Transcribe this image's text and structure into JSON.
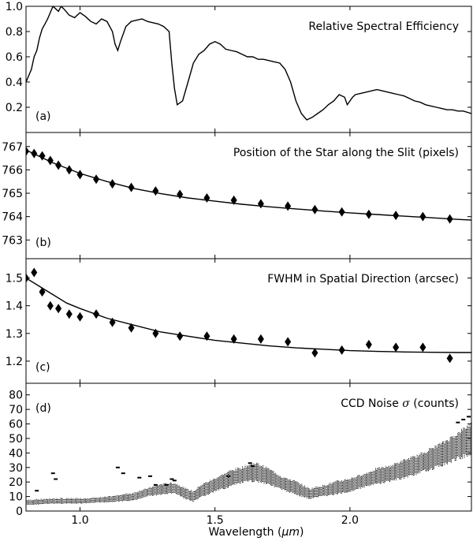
{
  "figure": {
    "xlabel_main": "Wavelength (",
    "xlabel_unit": "μm",
    "xlabel_close": ")"
  },
  "chart_data": [
    {
      "type": "line",
      "panel_letter": "(a)",
      "title": "Relative Spectral Efficiency",
      "xlim": [
        0.8,
        2.45
      ],
      "ylim": [
        0.0,
        1.0
      ],
      "yticks": [
        0.2,
        0.4,
        0.6,
        0.8,
        1.0
      ],
      "ytick_labels": [
        "0.2",
        "0.4",
        "0.6",
        "0.8",
        "1.0"
      ],
      "series": [
        {
          "name": "efficiency",
          "x": [
            0.8,
            0.81,
            0.82,
            0.83,
            0.84,
            0.85,
            0.86,
            0.87,
            0.88,
            0.89,
            0.9,
            0.91,
            0.92,
            0.93,
            0.94,
            0.96,
            0.98,
            1.0,
            1.02,
            1.04,
            1.06,
            1.08,
            1.1,
            1.12,
            1.13,
            1.14,
            1.15,
            1.17,
            1.19,
            1.21,
            1.23,
            1.25,
            1.27,
            1.29,
            1.31,
            1.33,
            1.34,
            1.35,
            1.36,
            1.38,
            1.4,
            1.42,
            1.44,
            1.46,
            1.48,
            1.5,
            1.52,
            1.54,
            1.56,
            1.58,
            1.6,
            1.62,
            1.64,
            1.66,
            1.68,
            1.7,
            1.72,
            1.74,
            1.76,
            1.78,
            1.8,
            1.82,
            1.84,
            1.86,
            1.88,
            1.9,
            1.92,
            1.94,
            1.96,
            1.98,
            1.99,
            2.0,
            2.01,
            2.02,
            2.04,
            2.06,
            2.08,
            2.1,
            2.12,
            2.14,
            2.16,
            2.18,
            2.2,
            2.22,
            2.24,
            2.26,
            2.28,
            2.3,
            2.32,
            2.34,
            2.36,
            2.38,
            2.4,
            2.42,
            2.45
          ],
          "y": [
            0.4,
            0.45,
            0.5,
            0.6,
            0.65,
            0.75,
            0.82,
            0.86,
            0.9,
            0.95,
            1.0,
            0.98,
            0.96,
            1.0,
            0.98,
            0.93,
            0.91,
            0.95,
            0.92,
            0.88,
            0.86,
            0.9,
            0.88,
            0.8,
            0.7,
            0.65,
            0.72,
            0.84,
            0.88,
            0.89,
            0.9,
            0.88,
            0.87,
            0.86,
            0.84,
            0.8,
            0.55,
            0.35,
            0.22,
            0.25,
            0.4,
            0.55,
            0.62,
            0.65,
            0.7,
            0.72,
            0.7,
            0.66,
            0.65,
            0.64,
            0.62,
            0.6,
            0.6,
            0.58,
            0.58,
            0.57,
            0.56,
            0.55,
            0.5,
            0.4,
            0.25,
            0.15,
            0.1,
            0.12,
            0.15,
            0.18,
            0.22,
            0.25,
            0.3,
            0.28,
            0.22,
            0.25,
            0.28,
            0.3,
            0.31,
            0.32,
            0.33,
            0.34,
            0.33,
            0.32,
            0.31,
            0.3,
            0.29,
            0.27,
            0.25,
            0.24,
            0.22,
            0.21,
            0.2,
            0.19,
            0.18,
            0.18,
            0.17,
            0.17,
            0.15
          ]
        }
      ]
    },
    {
      "type": "scatter",
      "panel_letter": "(b)",
      "title": "Position of the Star along the Slit (pixels)",
      "xlim": [
        0.8,
        2.45
      ],
      "ylim": [
        762.2,
        767.6
      ],
      "yticks": [
        763,
        764,
        765,
        766,
        767
      ],
      "ytick_labels": [
        "763",
        "764",
        "765",
        "766",
        "767"
      ],
      "points": {
        "x": [
          0.8,
          0.83,
          0.86,
          0.89,
          0.92,
          0.96,
          1.0,
          1.06,
          1.12,
          1.19,
          1.28,
          1.37,
          1.47,
          1.57,
          1.67,
          1.77,
          1.87,
          1.97,
          2.07,
          2.17,
          2.27,
          2.37
        ],
        "y": [
          766.8,
          766.7,
          766.6,
          766.4,
          766.2,
          766.0,
          765.8,
          765.6,
          765.4,
          765.25,
          765.1,
          764.95,
          764.8,
          764.7,
          764.55,
          764.45,
          764.3,
          764.2,
          764.1,
          764.05,
          764.0,
          763.9
        ]
      },
      "fit_curve": {
        "x": [
          0.8,
          0.9,
          1.0,
          1.1,
          1.2,
          1.3,
          1.4,
          1.5,
          1.6,
          1.7,
          1.8,
          1.9,
          2.0,
          2.1,
          2.2,
          2.3,
          2.4,
          2.45
        ],
        "y": [
          766.85,
          766.3,
          765.85,
          765.5,
          765.2,
          764.98,
          764.8,
          764.66,
          764.53,
          764.42,
          764.33,
          764.24,
          764.16,
          764.09,
          764.02,
          763.95,
          763.88,
          763.85
        ]
      }
    },
    {
      "type": "scatter",
      "panel_letter": "(c)",
      "title": "FWHM in Spatial Direction (arcsec)",
      "xlim": [
        0.8,
        2.45
      ],
      "ylim": [
        1.12,
        1.57
      ],
      "yticks": [
        1.2,
        1.3,
        1.4,
        1.5
      ],
      "ytick_labels": [
        "1.2",
        "1.3",
        "1.4",
        "1.5"
      ],
      "points": {
        "x": [
          0.8,
          0.83,
          0.86,
          0.89,
          0.92,
          0.96,
          1.0,
          1.06,
          1.12,
          1.19,
          1.28,
          1.37,
          1.47,
          1.57,
          1.67,
          1.77,
          1.87,
          1.97,
          2.07,
          2.17,
          2.27,
          2.37
        ],
        "y": [
          1.5,
          1.52,
          1.45,
          1.4,
          1.39,
          1.37,
          1.36,
          1.37,
          1.34,
          1.32,
          1.3,
          1.29,
          1.29,
          1.28,
          1.28,
          1.27,
          1.23,
          1.24,
          1.26,
          1.25,
          1.25,
          1.21
        ]
      },
      "fit_curve": {
        "x": [
          0.8,
          0.85,
          0.9,
          0.95,
          1.0,
          1.1,
          1.2,
          1.3,
          1.4,
          1.5,
          1.6,
          1.7,
          1.8,
          1.9,
          2.0,
          2.1,
          2.2,
          2.3,
          2.4,
          2.45
        ],
        "y": [
          1.5,
          1.47,
          1.44,
          1.41,
          1.39,
          1.355,
          1.33,
          1.305,
          1.29,
          1.275,
          1.265,
          1.255,
          1.248,
          1.243,
          1.238,
          1.235,
          1.233,
          1.232,
          1.231,
          1.231
        ]
      }
    },
    {
      "type": "scatter",
      "panel_letter": "(d)",
      "title_main": "CCD Noise ",
      "title_sigma": "σ",
      "title_rest": " (counts)",
      "xlim": [
        0.8,
        2.45
      ],
      "ylim": [
        0,
        88
      ],
      "yticks": [
        0,
        10,
        20,
        30,
        40,
        50,
        60,
        70,
        80
      ],
      "ytick_labels": [
        "0",
        "10",
        "20",
        "30",
        "40",
        "50",
        "60",
        "70",
        "80"
      ],
      "xticks": [
        1.0,
        1.5,
        2.0
      ],
      "xtick_labels": [
        "1.0",
        "1.5",
        "2.0"
      ],
      "trend": {
        "x": [
          0.8,
          0.9,
          1.0,
          1.1,
          1.2,
          1.25,
          1.3,
          1.35,
          1.38,
          1.42,
          1.45,
          1.5,
          1.55,
          1.6,
          1.65,
          1.7,
          1.75,
          1.8,
          1.85,
          1.9,
          1.95,
          2.0,
          2.05,
          2.1,
          2.15,
          2.2,
          2.25,
          2.3,
          2.35,
          2.4,
          2.45
        ],
        "center": [
          6,
          7,
          7,
          8,
          10,
          13,
          15,
          16,
          13,
          10,
          14,
          18,
          22,
          25,
          27,
          24,
          19,
          16,
          12,
          14,
          16,
          18,
          21,
          24,
          26,
          29,
          32,
          36,
          40,
          45,
          50
        ],
        "spread": [
          2,
          2,
          2,
          2,
          3,
          3,
          4,
          4,
          4,
          4,
          5,
          5,
          6,
          6,
          7,
          6,
          5,
          5,
          4,
          4,
          5,
          5,
          5,
          6,
          6,
          7,
          7,
          8,
          9,
          10,
          12
        ]
      },
      "outliers": {
        "x": [
          0.84,
          0.9,
          0.91,
          1.14,
          1.16,
          1.22,
          1.26,
          1.28,
          1.32,
          1.34,
          1.35,
          1.55,
          1.63,
          1.64,
          2.4,
          2.42,
          2.44
        ],
        "y": [
          14,
          26,
          22,
          30,
          26,
          23,
          24,
          18,
          18,
          22,
          21,
          24,
          33,
          31,
          61,
          63,
          65
        ]
      }
    }
  ]
}
